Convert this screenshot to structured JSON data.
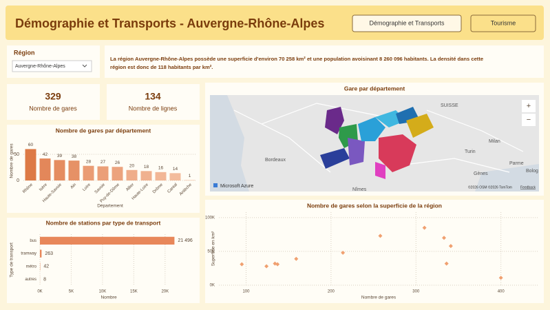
{
  "header": {
    "title": "Démographie et Transports - Auvergne-Rhône-Alpes",
    "buttons": [
      "Démographie et Transports",
      "Tourisme"
    ]
  },
  "slicer": {
    "label": "Région",
    "value": "Auvergne-Rhône-Alpes"
  },
  "summary": [
    "La région Auvergne-Rhône-Alpes possède une superficie d'environ 70 258 km² et une population avoisinant 8 260 096 habitants. La densité dans cette",
    "région est donc de  118 habitants par km²."
  ],
  "cards": [
    {
      "value": 329,
      "label": "Nombre de gares"
    },
    {
      "value": 134,
      "label": "Nombre de lignes"
    }
  ],
  "map": {
    "title": "Gare par département",
    "labels": [
      "Bordeaux",
      "SUISSE",
      "Milan",
      "Turin",
      "Gènes",
      "Parme",
      "Bolog",
      "Nîmes"
    ],
    "brand": "Microsoft Azure",
    "attribution": "©2026 OSM ©2026 TomTom",
    "feedback": "Feedback"
  },
  "chart_data": [
    {
      "type": "bar",
      "title": "Nombre de gares par département",
      "y_label": "Nombre de gares",
      "x_label": "Département",
      "categories": [
        "Rhône",
        "Isère",
        "Haute-Savoie",
        "Ain",
        "Loire",
        "Savoie",
        "Puy-de-Dôme",
        "Allier",
        "Haute-Loire",
        "Drôme",
        "Cantal",
        "Ardèche"
      ],
      "values": [
        60,
        42,
        39,
        38,
        28,
        27,
        26,
        20,
        18,
        16,
        14,
        1
      ],
      "colors": [
        "#dd7a46",
        "#e3875a",
        "#e58d60",
        "#e69166",
        "#ea9c74",
        "#eb9f78",
        "#eca37d",
        "#efad8a",
        "#f0b18f",
        "#f2b796",
        "#f3bc9c",
        "#f7d0b6"
      ],
      "ylim": [
        0,
        75
      ],
      "yticks": [
        0,
        50
      ],
      "grid": true
    },
    {
      "type": "barh",
      "title": "Nombre de stations par type de transport",
      "y_label": "Type de transport",
      "x_label": "Nombre",
      "categories": [
        "bus",
        "tramway",
        "métro",
        "autres"
      ],
      "values": [
        21496,
        263,
        42,
        8
      ],
      "value_labels": [
        "21 496",
        "263",
        "42",
        "8"
      ],
      "color": "#e8875a",
      "xlim": [
        0,
        22000
      ],
      "xticks": [
        {
          "value": 0,
          "label": "0K"
        },
        {
          "value": 5000,
          "label": "5K"
        },
        {
          "value": 10000,
          "label": "10K"
        },
        {
          "value": 15000,
          "label": "15K"
        },
        {
          "value": 20000,
          "label": "20K"
        }
      ],
      "grid": true
    },
    {
      "type": "scatter",
      "title": "Nombre de gares selon la superficie de la région",
      "y_label": "Superficie en km²",
      "x_label": "Nombre de gares",
      "x": [
        95,
        124,
        134,
        137,
        159,
        214,
        258,
        310,
        333,
        336,
        341,
        400
      ],
      "values": [
        31000,
        28000,
        32000,
        31000,
        39000,
        48000,
        73000,
        85000,
        70000,
        32000,
        58000,
        11000
      ],
      "color": "#f0a070",
      "xlim": [
        68,
        444
      ],
      "ylim": [
        0,
        108000
      ],
      "xticks": [
        100,
        200,
        300,
        400
      ],
      "yticks": [
        {
          "value": 0,
          "label": "0K"
        },
        {
          "value": 50000,
          "label": "50K"
        },
        {
          "value": 100000,
          "label": "100K"
        }
      ],
      "grid": true
    }
  ]
}
